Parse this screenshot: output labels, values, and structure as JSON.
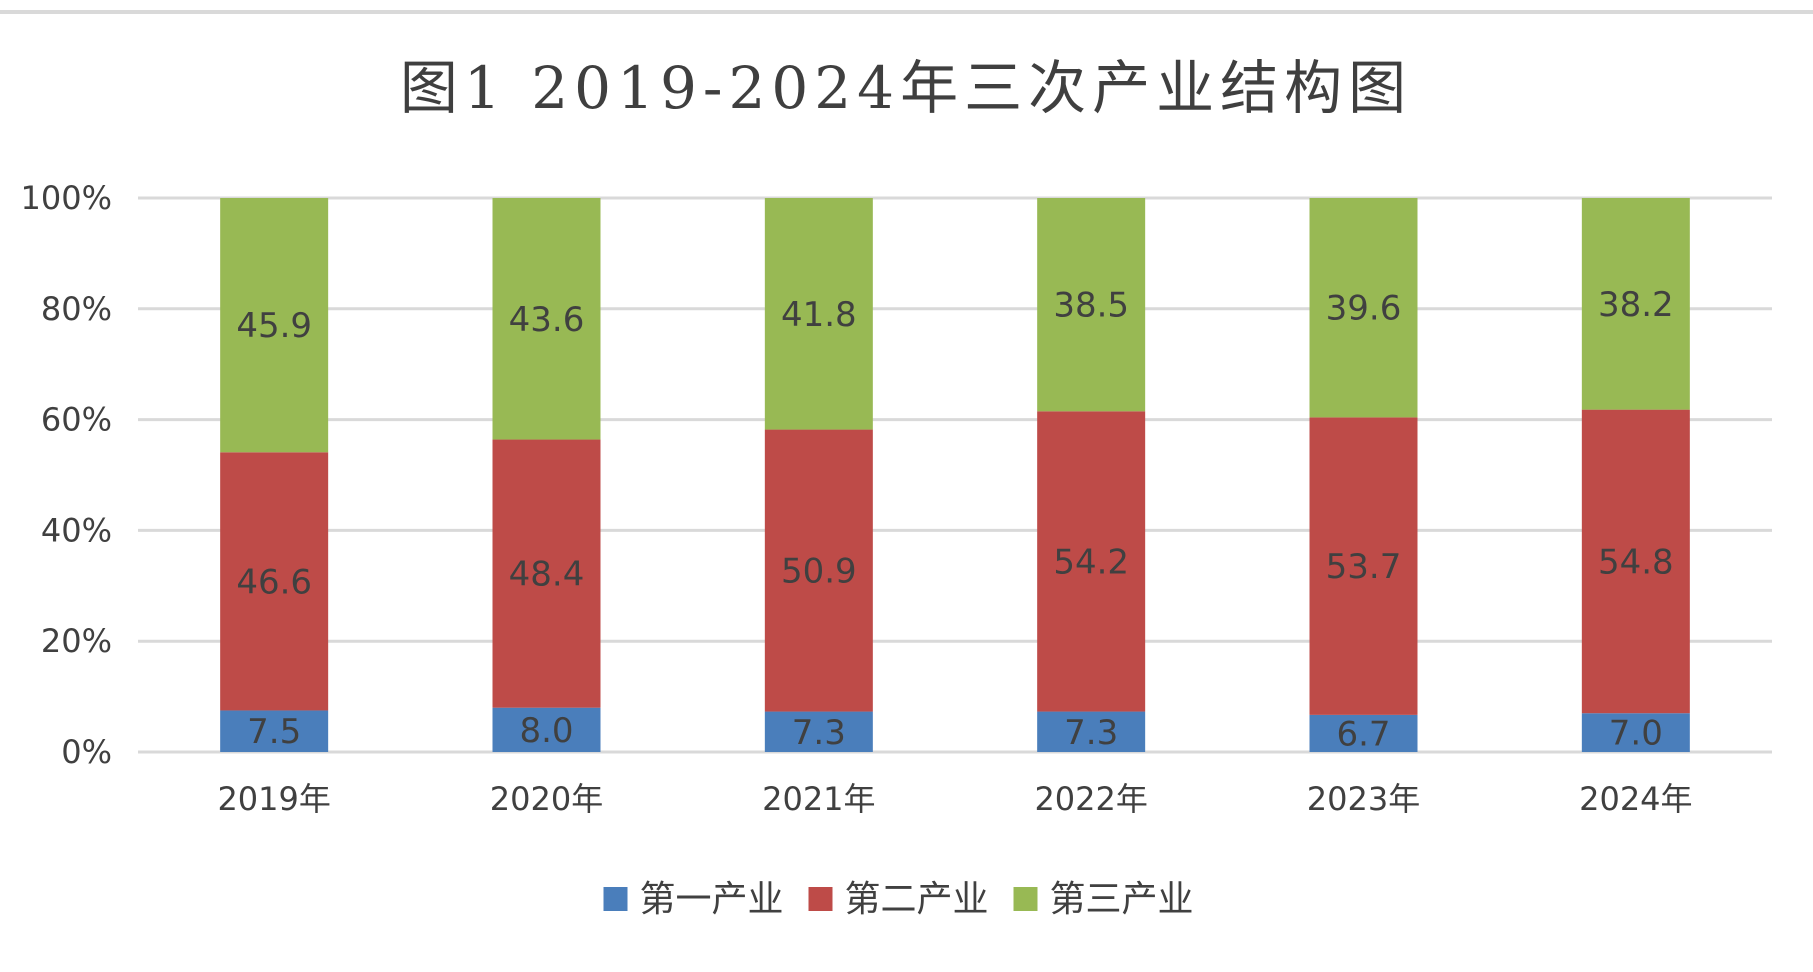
{
  "chart_data": {
    "type": "bar",
    "stacked": true,
    "percent_stacked": true,
    "title": "图1   2019-2024年三次产业结构图",
    "categories": [
      "2019年",
      "2020年",
      "2021年",
      "2022年",
      "2023年",
      "2024年"
    ],
    "series": [
      {
        "name": "第一产业",
        "color": "#4a7ebb",
        "values": [
          7.5,
          8.0,
          7.3,
          7.3,
          6.7,
          7.0
        ]
      },
      {
        "name": "第二产业",
        "color": "#be4b48",
        "values": [
          46.6,
          48.4,
          50.9,
          54.2,
          53.7,
          54.8
        ]
      },
      {
        "name": "第三产业",
        "color": "#98b954",
        "values": [
          45.9,
          43.6,
          41.8,
          38.5,
          39.6,
          38.2
        ]
      }
    ],
    "y_ticks": [
      "0%",
      "20%",
      "40%",
      "60%",
      "80%",
      "100%"
    ],
    "ylim": [
      0,
      100
    ],
    "grid": true,
    "legend_position": "bottom",
    "xlabel": "",
    "ylabel": ""
  }
}
